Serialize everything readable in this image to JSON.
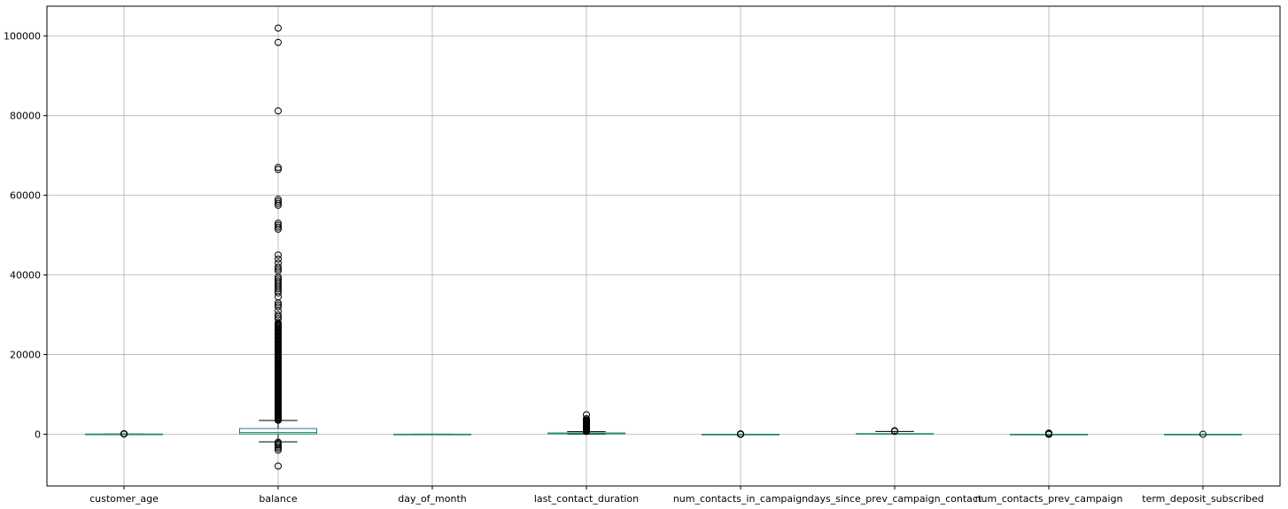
{
  "chart_data": {
    "type": "boxplot",
    "title": "",
    "xlabel": "",
    "ylabel": "",
    "ylim": [
      -13000,
      107500
    ],
    "yticks": [
      0,
      20000,
      40000,
      60000,
      80000,
      100000
    ],
    "grid": true,
    "categories": [
      "customer_age",
      "balance",
      "day_of_month",
      "last_contact_duration",
      "num_contacts_in_campaign",
      "days_since_prev_campaign_contact",
      "num_contacts_prev_campaign",
      "term_deposit_subscribed"
    ],
    "boxes": [
      {
        "q1": 33,
        "median": 39,
        "q3": 48,
        "whislo": 18,
        "whishi": 70,
        "fliers": [
          71,
          75,
          78,
          82,
          86,
          90,
          95
        ]
      },
      {
        "q1": 72,
        "median": 448,
        "q3": 1428,
        "whislo": -1900,
        "whishi": 3460,
        "fliers_dense": [
          3500,
          28000
        ],
        "fliers": [
          -2000,
          -2300,
          -2700,
          -3100,
          -3500,
          -4000,
          -8000,
          29000,
          29500,
          30000,
          31000,
          32000,
          32500,
          33000,
          34500,
          35500,
          36000,
          36500,
          37000,
          37500,
          38000,
          38500,
          39000,
          39500,
          41000,
          41500,
          42000,
          43000,
          44000,
          45000,
          51500,
          52000,
          52500,
          53000,
          57500,
          58000,
          58500,
          59000,
          66500,
          67000,
          81200,
          98400,
          102000
        ]
      },
      {
        "q1": 8,
        "median": 16,
        "q3": 21,
        "whislo": 1,
        "whishi": 31,
        "fliers": []
      },
      {
        "q1": 103,
        "median": 180,
        "q3": 319,
        "whislo": 0,
        "whishi": 643,
        "fliers": [
          700,
          800,
          900,
          1000,
          1200,
          1400,
          1600,
          1800,
          2000,
          2200,
          2400,
          2600,
          2800,
          3000,
          3200,
          3400,
          3600,
          3900,
          4900
        ]
      },
      {
        "q1": 1,
        "median": 2,
        "q3": 3,
        "whislo": 1,
        "whishi": 6,
        "fliers": [
          7,
          10,
          15,
          20,
          30,
          40,
          50,
          63
        ]
      },
      {
        "q1": -1,
        "median": -1,
        "q3": 160,
        "whislo": -1,
        "whishi": 700,
        "fliers": [
          750,
          800,
          850,
          871
        ]
      },
      {
        "q1": 0,
        "median": 0,
        "q3": 0,
        "whislo": 0,
        "whishi": 0,
        "fliers": [
          1,
          5,
          10,
          20,
          40,
          60,
          100,
          150,
          200,
          275
        ]
      },
      {
        "q1": 0,
        "median": 0,
        "q3": 0,
        "whislo": 0,
        "whishi": 0,
        "fliers": [
          1
        ]
      }
    ],
    "colors": {
      "box": "#1f77b4",
      "median": "#2ca02c",
      "whisker": "#000000",
      "flier": "#000000",
      "grid": "#b0b0b0"
    }
  }
}
